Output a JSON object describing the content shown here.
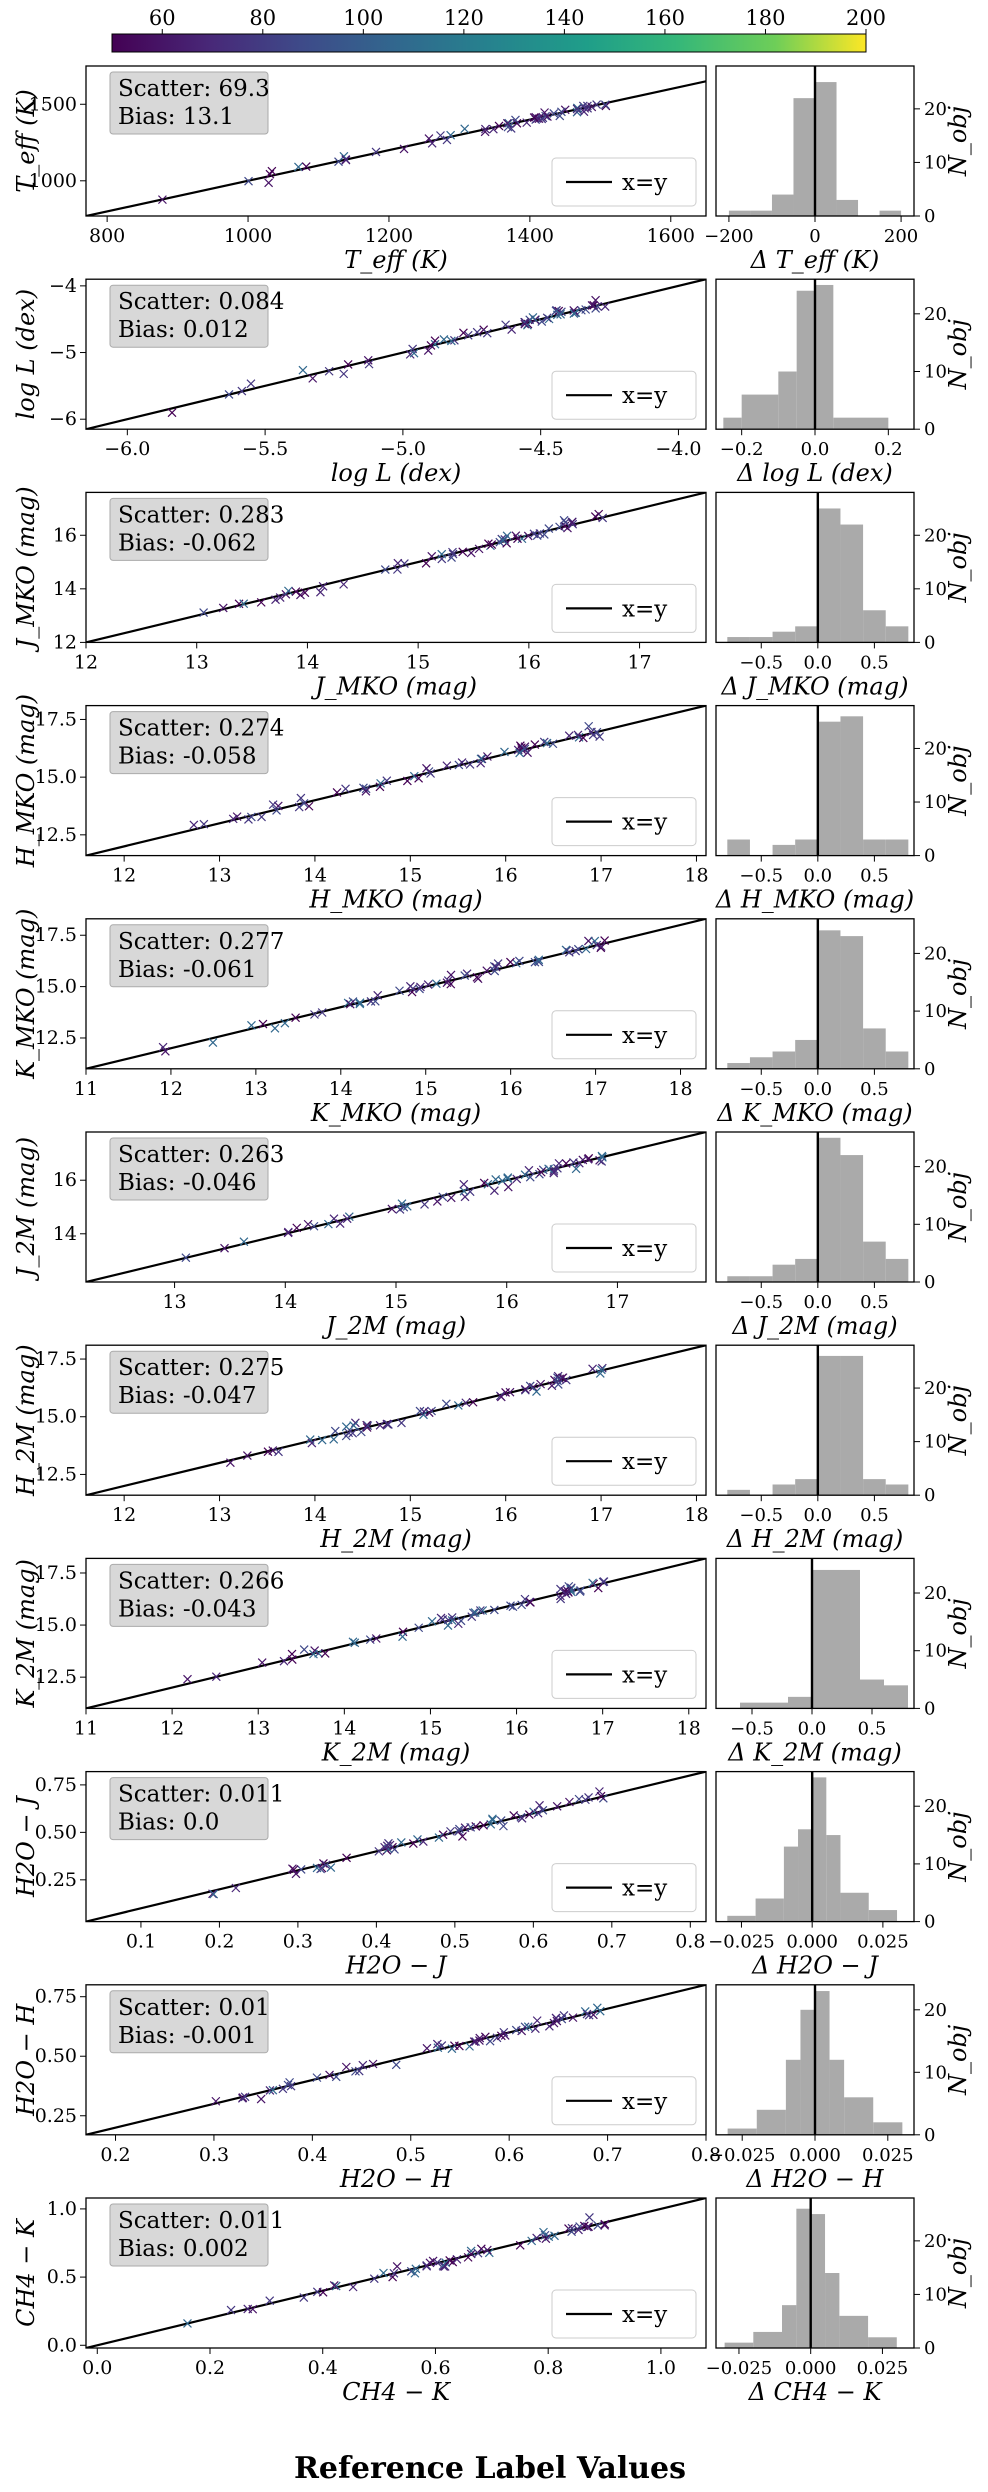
{
  "figure": {
    "xlabel": "Reference Label Values",
    "colorbar": {
      "ticks": [
        "60",
        "80",
        "100",
        "120",
        "140",
        "160",
        "180",
        "200"
      ],
      "range": [
        50,
        200
      ]
    },
    "legend_label": "x=y",
    "hist_ylabel": "N_obj",
    "hist_yticks": [
      "0",
      "10",
      "20"
    ]
  },
  "chart_data": [
    {
      "type": "scatter",
      "name": "teff",
      "xlabel": "T_eff (K)",
      "ylabel": "T_eff (K)",
      "hist_xlabel": "Δ T_eff (K)",
      "scatter_label": "Scatter: 69.3",
      "bias_label": "Bias: 13.1",
      "xlim": [
        770,
        1650
      ],
      "ylim": [
        770,
        1750
      ],
      "xticks": [
        800,
        1000,
        1200,
        1400,
        1600
      ],
      "xticklabels": [
        "800",
        "1000",
        "1200",
        "1400",
        "1600"
      ],
      "yticks": [
        1000,
        1500
      ],
      "yticklabels": [
        "1000",
        "1500"
      ],
      "hist": {
        "xlim": [
          -230,
          230
        ],
        "xticks": [
          -200,
          0,
          200
        ],
        "xticklabels": [
          "−200",
          "0",
          "200"
        ],
        "ymax": 28,
        "edges": [
          -200,
          -150,
          -100,
          -50,
          0,
          50,
          100,
          150,
          200
        ],
        "counts": [
          1,
          1,
          4,
          22,
          25,
          3,
          0,
          1
        ]
      }
    },
    {
      "type": "scatter",
      "name": "logl",
      "xlabel": "log L (dex)",
      "ylabel": "log L (dex)",
      "hist_xlabel": "Δ log L (dex)",
      "scatter_label": "Scatter: 0.084",
      "bias_label": "Bias: 0.012",
      "xlim": [
        -6.15,
        -3.9
      ],
      "ylim": [
        -6.15,
        -3.9
      ],
      "xticks": [
        -6.0,
        -5.5,
        -5.0,
        -4.5,
        -4.0
      ],
      "xticklabels": [
        "−6.0",
        "−5.5",
        "−5.0",
        "−4.5",
        "−4.0"
      ],
      "yticks": [
        -6,
        -5,
        -4
      ],
      "yticklabels": [
        "−6",
        "−5",
        "−4"
      ],
      "hist": {
        "xlim": [
          -0.27,
          0.27
        ],
        "xticks": [
          -0.2,
          0.0,
          0.2
        ],
        "xticklabels": [
          "−0.2",
          "0.0",
          "0.2"
        ],
        "ymax": 26,
        "edges": [
          -0.25,
          -0.2,
          -0.1,
          -0.05,
          0,
          0.05,
          0.2
        ],
        "counts": [
          2,
          6,
          10,
          24,
          25,
          2
        ]
      }
    },
    {
      "type": "scatter",
      "name": "jmko",
      "xlabel": "J_MKO (mag)",
      "ylabel": "J_MKO (mag)",
      "hist_xlabel": "Δ J_MKO (mag)",
      "scatter_label": "Scatter: 0.283",
      "bias_label": "Bias: -0.062",
      "xlim": [
        12,
        17.6
      ],
      "ylim": [
        12,
        17.6
      ],
      "xticks": [
        12,
        13,
        14,
        15,
        16,
        17
      ],
      "xticklabels": [
        "12",
        "13",
        "14",
        "15",
        "16",
        "17"
      ],
      "yticks": [
        12,
        14,
        16
      ],
      "yticklabels": [
        "12",
        "14",
        "16"
      ],
      "hist": {
        "xlim": [
          -0.9,
          0.85
        ],
        "xticks": [
          -0.5,
          0.0,
          0.5
        ],
        "xticklabels": [
          "−0.5",
          "0.0",
          "0.5"
        ],
        "ymax": 28,
        "edges": [
          -0.8,
          -0.6,
          -0.4,
          -0.2,
          0,
          0.2,
          0.4,
          0.6,
          0.8
        ],
        "counts": [
          1,
          1,
          2,
          3,
          25,
          22,
          6,
          3
        ]
      }
    },
    {
      "type": "scatter",
      "name": "hmko",
      "xlabel": "H_MKO (mag)",
      "ylabel": "H_MKO (mag)",
      "hist_xlabel": "Δ H_MKO (mag)",
      "scatter_label": "Scatter: 0.274",
      "bias_label": "Bias: -0.058",
      "xlim": [
        11.6,
        18.1
      ],
      "ylim": [
        11.6,
        18.1
      ],
      "xticks": [
        12,
        13,
        14,
        15,
        16,
        17,
        18
      ],
      "xticklabels": [
        "12",
        "13",
        "14",
        "15",
        "16",
        "17",
        "18"
      ],
      "yticks": [
        12.5,
        15.0,
        17.5
      ],
      "yticklabels": [
        "12.5",
        "15.0",
        "17.5"
      ],
      "hist": {
        "xlim": [
          -0.9,
          0.85
        ],
        "xticks": [
          -0.5,
          0.0,
          0.5
        ],
        "xticklabels": [
          "−0.5",
          "0.0",
          "0.5"
        ],
        "ymax": 28,
        "edges": [
          -0.8,
          -0.6,
          -0.4,
          -0.2,
          0,
          0.2,
          0.4,
          0.6,
          0.8
        ],
        "counts": [
          3,
          0,
          2,
          3,
          25,
          26,
          3,
          3
        ]
      }
    },
    {
      "type": "scatter",
      "name": "kmko",
      "xlabel": "K_MKO (mag)",
      "ylabel": "K_MKO (mag)",
      "hist_xlabel": "Δ K_MKO (mag)",
      "scatter_label": "Scatter: 0.277",
      "bias_label": "Bias: -0.061",
      "xlim": [
        11,
        18.3
      ],
      "ylim": [
        11,
        18.3
      ],
      "xticks": [
        11,
        12,
        13,
        14,
        15,
        16,
        17,
        18
      ],
      "xticklabels": [
        "11",
        "12",
        "13",
        "14",
        "15",
        "16",
        "17",
        "18"
      ],
      "yticks": [
        12.5,
        15.0,
        17.5
      ],
      "yticklabels": [
        "12.5",
        "15.0",
        "17.5"
      ],
      "hist": {
        "xlim": [
          -0.9,
          0.85
        ],
        "xticks": [
          -0.5,
          0.0,
          0.5
        ],
        "xticklabels": [
          "−0.5",
          "0.0",
          "0.5"
        ],
        "ymax": 26,
        "edges": [
          -0.8,
          -0.6,
          -0.4,
          -0.2,
          0,
          0.2,
          0.4,
          0.6,
          0.8
        ],
        "counts": [
          1,
          2,
          3,
          5,
          24,
          23,
          7,
          3
        ]
      }
    },
    {
      "type": "scatter",
      "name": "j2m",
      "xlabel": "J_2M (mag)",
      "ylabel": "J_2M (mag)",
      "hist_xlabel": "Δ J_2M (mag)",
      "scatter_label": "Scatter: 0.263",
      "bias_label": "Bias: -0.046",
      "xlim": [
        12.2,
        17.8
      ],
      "ylim": [
        12.2,
        17.8
      ],
      "xticks": [
        13,
        14,
        15,
        16,
        17
      ],
      "xticklabels": [
        "13",
        "14",
        "15",
        "16",
        "17"
      ],
      "yticks": [
        14,
        16
      ],
      "yticklabels": [
        "14",
        "16"
      ],
      "hist": {
        "xlim": [
          -0.9,
          0.85
        ],
        "xticks": [
          -0.5,
          0.0,
          0.5
        ],
        "xticklabels": [
          "−0.5",
          "0.0",
          "0.5"
        ],
        "ymax": 26,
        "edges": [
          -0.8,
          -0.6,
          -0.4,
          -0.2,
          0,
          0.2,
          0.4,
          0.6,
          0.8
        ],
        "counts": [
          1,
          1,
          3,
          4,
          25,
          22,
          7,
          4
        ]
      }
    },
    {
      "type": "scatter",
      "name": "h2m",
      "xlabel": "H_2M (mag)",
      "ylabel": "H_2M (mag)",
      "hist_xlabel": "Δ H_2M (mag)",
      "scatter_label": "Scatter: 0.275",
      "bias_label": "Bias: -0.047",
      "xlim": [
        11.6,
        18.1
      ],
      "ylim": [
        11.6,
        18.1
      ],
      "xticks": [
        12,
        13,
        14,
        15,
        16,
        17,
        18
      ],
      "xticklabels": [
        "12",
        "13",
        "14",
        "15",
        "16",
        "17",
        "18"
      ],
      "yticks": [
        12.5,
        15.0,
        17.5
      ],
      "yticklabels": [
        "12.5",
        "15.0",
        "17.5"
      ],
      "hist": {
        "xlim": [
          -0.9,
          0.85
        ],
        "xticks": [
          -0.5,
          0.0,
          0.5
        ],
        "xticklabels": [
          "−0.5",
          "0.0",
          "0.5"
        ],
        "ymax": 28,
        "edges": [
          -0.8,
          -0.6,
          -0.4,
          -0.2,
          0,
          0.2,
          0.4,
          0.6,
          0.8
        ],
        "counts": [
          1,
          0,
          2,
          3,
          26,
          26,
          3,
          2
        ]
      }
    },
    {
      "type": "scatter",
      "name": "k2m",
      "xlabel": "K_2M (mag)",
      "ylabel": "K_2M (mag)",
      "hist_xlabel": "Δ K_2M (mag)",
      "scatter_label": "Scatter: 0.266",
      "bias_label": "Bias: -0.043",
      "xlim": [
        11,
        18.2
      ],
      "ylim": [
        11,
        18.2
      ],
      "xticks": [
        11,
        12,
        13,
        14,
        15,
        16,
        17,
        18
      ],
      "xticklabels": [
        "11",
        "12",
        "13",
        "14",
        "15",
        "16",
        "17",
        "18"
      ],
      "yticks": [
        12.5,
        15.0,
        17.5
      ],
      "yticklabels": [
        "12.5",
        "15.0",
        "17.5"
      ],
      "hist": {
        "xlim": [
          -0.8,
          0.85
        ],
        "xticks": [
          -0.5,
          0.0,
          0.5
        ],
        "xticklabels": [
          "−0.5",
          "0.0",
          "0.5"
        ],
        "ymax": 26,
        "edges": [
          -0.6,
          -0.4,
          -0.2,
          0,
          0.2,
          0.4,
          0.6,
          0.8
        ],
        "counts": [
          1,
          1,
          2,
          24,
          24,
          5,
          4
        ]
      }
    },
    {
      "type": "scatter",
      "name": "h2oj",
      "xlabel": "H2O − J",
      "ylabel": "H2O − J",
      "hist_xlabel": "Δ H2O − J",
      "scatter_label": "Scatter: 0.011",
      "bias_label": "Bias: 0.0",
      "xlim": [
        0.03,
        0.82
      ],
      "ylim": [
        0.03,
        0.82
      ],
      "xticks": [
        0.1,
        0.2,
        0.3,
        0.4,
        0.5,
        0.6,
        0.7,
        0.8
      ],
      "xticklabels": [
        "0.1",
        "0.2",
        "0.3",
        "0.4",
        "0.5",
        "0.6",
        "0.7",
        "0.8"
      ],
      "yticks": [
        0.25,
        0.5,
        0.75
      ],
      "yticklabels": [
        "0.25",
        "0.50",
        "0.75"
      ],
      "hist": {
        "xlim": [
          -0.034,
          0.036
        ],
        "xticks": [
          -0.025,
          0.0,
          0.025
        ],
        "xticklabels": [
          "−0.025",
          "0.000",
          "0.025"
        ],
        "ymax": 26,
        "edges": [
          -0.03,
          -0.02,
          -0.01,
          -0.005,
          0,
          0.005,
          0.01,
          0.02,
          0.03
        ],
        "counts": [
          1,
          4,
          13,
          16,
          25,
          15,
          5,
          2
        ]
      }
    },
    {
      "type": "scatter",
      "name": "h2oh",
      "xlabel": "H2O − H",
      "ylabel": "H2O − H",
      "hist_xlabel": "Δ H2O − H",
      "scatter_label": "Scatter: 0.01",
      "bias_label": "Bias: -0.001",
      "xlim": [
        0.17,
        0.8
      ],
      "ylim": [
        0.17,
        0.8
      ],
      "xticks": [
        0.2,
        0.3,
        0.4,
        0.5,
        0.6,
        0.7,
        0.8
      ],
      "xticklabels": [
        "0.2",
        "0.3",
        "0.4",
        "0.5",
        "0.6",
        "0.7",
        "0.8"
      ],
      "yticks": [
        0.25,
        0.5,
        0.75
      ],
      "yticklabels": [
        "0.25",
        "0.50",
        "0.75"
      ],
      "hist": {
        "xlim": [
          -0.034,
          0.034
        ],
        "xticks": [
          -0.025,
          0.0,
          0.025
        ],
        "xticklabels": [
          "−0.025",
          "0.000",
          "0.025"
        ],
        "ymax": 24,
        "edges": [
          -0.03,
          -0.02,
          -0.01,
          -0.005,
          0,
          0.005,
          0.01,
          0.02,
          0.03
        ],
        "counts": [
          1,
          4,
          12,
          20,
          23,
          12,
          6,
          2
        ]
      }
    },
    {
      "type": "scatter",
      "name": "ch4k",
      "xlabel": "CH4 − K",
      "ylabel": "CH4 − K",
      "hist_xlabel": "Δ CH4 − K",
      "scatter_label": "Scatter: 0.011",
      "bias_label": "Bias: 0.002",
      "xlim": [
        -0.02,
        1.08
      ],
      "ylim": [
        -0.02,
        1.08
      ],
      "xticks": [
        0.0,
        0.2,
        0.4,
        0.6,
        0.8,
        1.0
      ],
      "xticklabels": [
        "0.0",
        "0.2",
        "0.4",
        "0.6",
        "0.8",
        "1.0"
      ],
      "yticks": [
        0.0,
        0.5,
        1.0
      ],
      "yticklabels": [
        "0.0",
        "0.5",
        "1.0"
      ],
      "hist": {
        "xlim": [
          -0.033,
          0.036
        ],
        "xticks": [
          -0.025,
          0.0,
          0.025
        ],
        "xticklabels": [
          "−0.025",
          "0.000",
          "0.025"
        ],
        "ymax": 28,
        "edges": [
          -0.03,
          -0.02,
          -0.01,
          -0.005,
          0,
          0.005,
          0.01,
          0.02,
          0.03
        ],
        "counts": [
          1,
          3,
          8,
          26,
          25,
          14,
          6,
          2
        ]
      }
    }
  ]
}
